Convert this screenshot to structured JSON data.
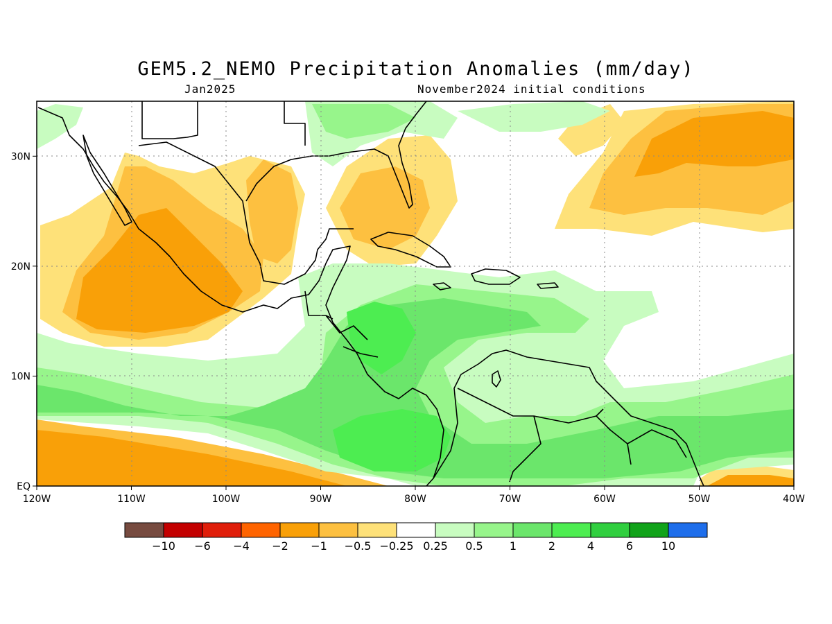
{
  "title": "GEM5.2_NEMO Precipitation Anomalies (mm/day)",
  "subtitle_left": "Jan2025",
  "subtitle_right": "November2024 initial conditions",
  "map": {
    "lon_range": [
      -120,
      -40
    ],
    "lat_range": [
      0,
      35
    ],
    "x_ticks": [
      {
        "lon": -120,
        "label": "120W"
      },
      {
        "lon": -110,
        "label": "110W"
      },
      {
        "lon": -100,
        "label": "100W"
      },
      {
        "lon": -90,
        "label": "90W"
      },
      {
        "lon": -80,
        "label": "80W"
      },
      {
        "lon": -70,
        "label": "70W"
      },
      {
        "lon": -60,
        "label": "60W"
      },
      {
        "lon": -50,
        "label": "50W"
      },
      {
        "lon": -40,
        "label": "40W"
      }
    ],
    "y_ticks": [
      {
        "lat": 0,
        "label": "EQ"
      },
      {
        "lat": 10,
        "label": "10N"
      },
      {
        "lat": 20,
        "label": "20N"
      },
      {
        "lat": 30,
        "label": "30N"
      }
    ],
    "grid": "dotted"
  },
  "colorbar": {
    "colors": [
      "#774b40",
      "#c30000",
      "#e01e0a",
      "#ff6400",
      "#f9a008",
      "#fdc040",
      "#fee179",
      "#ffffff",
      "#c8fcc0",
      "#97f58b",
      "#6be66b",
      "#4ded51",
      "#30cf3f",
      "#11a31a",
      "#1e6eeb"
    ],
    "labels": [
      "−10",
      "−6",
      "−4",
      "−2",
      "−1",
      "−0.5",
      "−0.25",
      "0.25",
      "0.5",
      "1",
      "2",
      "4",
      "6",
      "10"
    ]
  },
  "palette": {
    "neg_strong": "#f9a008",
    "neg_mid": "#fdc040",
    "neg_weak": "#fee179",
    "pos_weak": "#c8fcc0",
    "pos_mid": "#97f58b",
    "pos_strong": "#6be66b",
    "pos_max": "#4ded51"
  }
}
